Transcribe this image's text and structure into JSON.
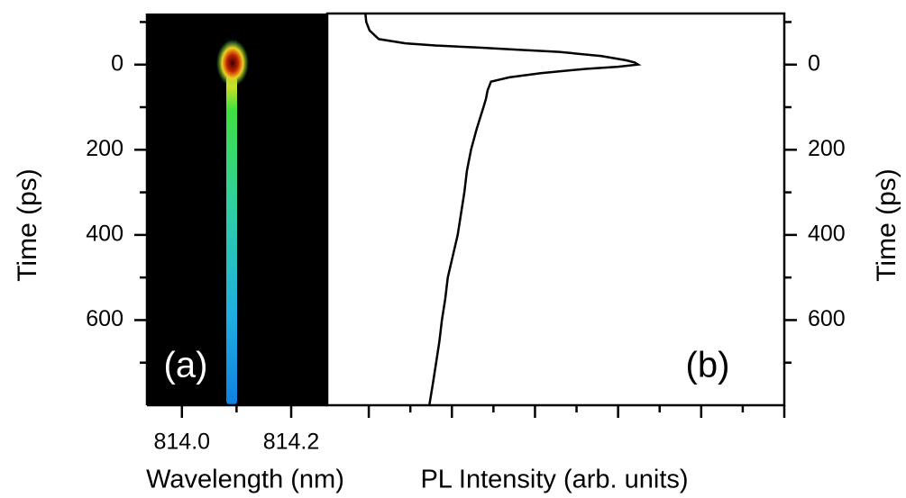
{
  "chart_data": [
    {
      "type": "image",
      "label": "(a)",
      "xlabel": "Wavelength (nm)",
      "ylabel": "Time (ps)",
      "xlim": [
        813.936,
        814.266
      ],
      "xticks": [
        {
          "value": 814.0,
          "label": "814.0"
        },
        {
          "value": 814.2,
          "label": "814.2"
        }
      ],
      "xminorticks": [
        814.1
      ],
      "ylim": [
        -120,
        800
      ],
      "y_inverted": true,
      "yticks": [
        0,
        200,
        400,
        600
      ],
      "yminorticks": [
        -100,
        100,
        300,
        500,
        700
      ]
    },
    {
      "type": "line",
      "label": "(b)",
      "xlabel": "PL Intensity (arb. units)",
      "y2label": "Time (ps)",
      "color": "#000000",
      "xlim": [
        -0.5,
        5
      ],
      "xticks": [
        0,
        1,
        2,
        3,
        4,
        5
      ],
      "xminorticks": [
        0.5,
        1.5,
        2.5,
        3.5,
        4.5
      ],
      "show_xtick_labels": false,
      "ylim": [
        -120,
        800
      ],
      "y_inverted": true,
      "yticks": [
        0,
        200,
        400,
        600
      ],
      "yminorticks": [
        -100,
        100,
        300,
        500,
        700
      ],
      "y": [
        -118,
        -100,
        -80,
        -60,
        -50,
        -45,
        -40,
        -35,
        -30,
        -20,
        -10,
        -5,
        0,
        5,
        10,
        20,
        30,
        40,
        50,
        60,
        80,
        100,
        150,
        200,
        250,
        300,
        350,
        400,
        450,
        500,
        550,
        600,
        650,
        700,
        750,
        798
      ],
      "values": [
        -0.04,
        -0.03,
        0.01,
        0.12,
        0.44,
        0.8,
        1.31,
        1.8,
        2.29,
        2.8,
        3.1,
        3.2,
        3.24,
        3.0,
        2.61,
        2.07,
        1.69,
        1.47,
        1.45,
        1.43,
        1.41,
        1.38,
        1.3,
        1.23,
        1.18,
        1.15,
        1.11,
        1.07,
        1.01,
        0.95,
        0.92,
        0.88,
        0.85,
        0.81,
        0.77,
        0.73
      ]
    }
  ]
}
